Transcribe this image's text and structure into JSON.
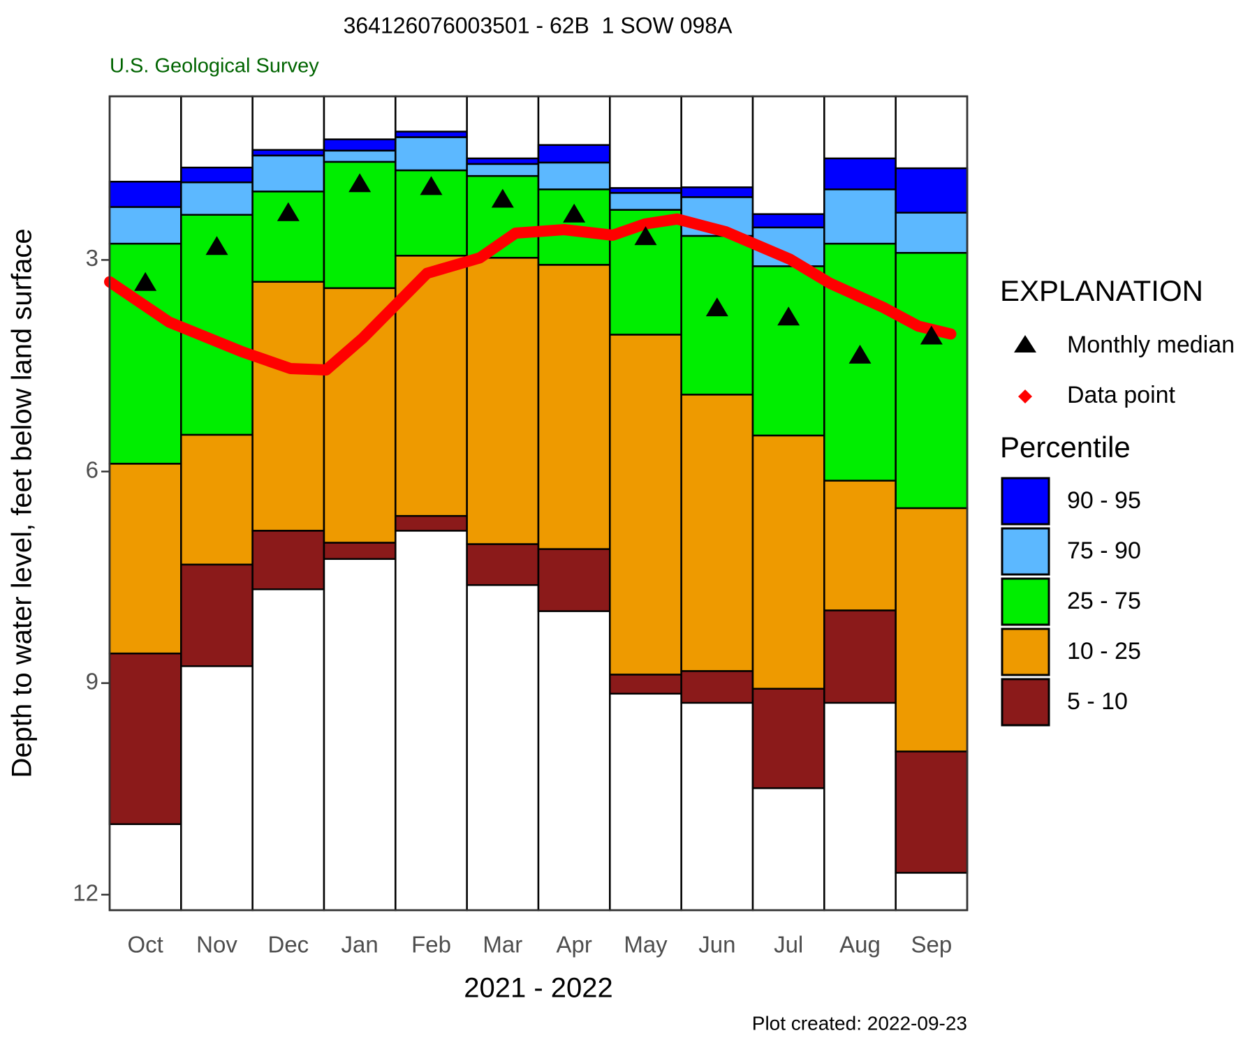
{
  "chart_data": {
    "type": "floating-bar",
    "title": "364126076003501 - 62B  1 SOW 098A",
    "subtitle": "U.S. Geological Survey",
    "caption": "Plot created: 2022-09-23",
    "x_label": "2021 - 2022",
    "y_label": "Depth to water level, feet below land surface",
    "categories": [
      "Oct",
      "Nov",
      "Dec",
      "Jan",
      "Feb",
      "Mar",
      "Apr",
      "May",
      "Jun",
      "Jul",
      "Aug",
      "Sep"
    ],
    "invert_y": true,
    "ylim": [
      0.68,
      12.22
    ],
    "yticks": [
      3,
      6,
      9,
      12
    ],
    "xlim": [
      0,
      12
    ],
    "legend_title": "EXPLANATION",
    "legend_subtitle": "Percentile",
    "series": [
      {
        "name": "90 - 95",
        "color": "#0000ff",
        "top": [
          1.89,
          1.69,
          1.44,
          1.29,
          1.18,
          1.56,
          1.37,
          1.98,
          1.97,
          2.35,
          1.56,
          1.7
        ],
        "bottom": [
          2.25,
          1.9,
          1.52,
          1.45,
          1.26,
          1.64,
          1.62,
          2.05,
          2.11,
          2.54,
          2.0,
          2.33
        ]
      },
      {
        "name": "75 - 90",
        "color": "#5cb8ff",
        "top": [
          2.25,
          1.9,
          1.52,
          1.45,
          1.26,
          1.64,
          1.62,
          2.05,
          2.11,
          2.54,
          2.0,
          2.33
        ],
        "bottom": [
          2.77,
          2.36,
          2.03,
          1.61,
          1.73,
          1.81,
          2.0,
          2.29,
          2.66,
          3.09,
          2.77,
          2.9
        ]
      },
      {
        "name": "25 - 75",
        "color": "#00ee00",
        "top": [
          2.77,
          2.36,
          2.03,
          1.61,
          1.73,
          1.81,
          2.0,
          2.29,
          2.66,
          3.09,
          2.77,
          2.9
        ],
        "bottom": [
          5.89,
          5.48,
          3.31,
          3.4,
          2.94,
          2.97,
          3.07,
          4.06,
          4.91,
          5.49,
          6.13,
          6.52
        ]
      },
      {
        "name": "10 - 25",
        "color": "#ee9a00",
        "top": [
          5.89,
          5.48,
          3.31,
          3.4,
          2.94,
          2.97,
          3.07,
          4.06,
          4.91,
          5.49,
          6.13,
          6.52
        ],
        "bottom": [
          8.58,
          7.32,
          6.84,
          7.01,
          6.63,
          7.03,
          7.1,
          8.88,
          8.83,
          9.08,
          7.97,
          9.97
        ]
      },
      {
        "name": "5 - 10",
        "color": "#8b1a1a",
        "top": [
          8.58,
          7.32,
          6.84,
          7.01,
          6.63,
          7.03,
          7.1,
          8.88,
          8.83,
          9.08,
          7.97,
          9.97
        ],
        "bottom": [
          11.0,
          8.76,
          7.67,
          7.24,
          6.84,
          7.61,
          7.98,
          9.15,
          9.28,
          10.49,
          9.28,
          11.69
        ]
      }
    ],
    "median": {
      "name": "Monthly median",
      "color": "#000000",
      "values": [
        3.32,
        2.81,
        2.33,
        1.92,
        1.96,
        2.14,
        2.35,
        2.67,
        3.68,
        3.81,
        4.35,
        4.08
      ]
    },
    "line": {
      "name": "Data point",
      "color": "#ff0000",
      "x": [
        0,
        0.83,
        1.85,
        2.53,
        3.03,
        3.54,
        4.44,
        5.18,
        5.68,
        6.36,
        7.04,
        7.49,
        7.94,
        8.62,
        9.52,
        10.08,
        10.82,
        11.32,
        11.77
      ],
      "values": [
        3.31,
        3.88,
        4.3,
        4.54,
        4.56,
        4.11,
        3.19,
        2.97,
        2.62,
        2.57,
        2.65,
        2.49,
        2.42,
        2.6,
        2.99,
        3.33,
        3.67,
        3.94,
        4.05
      ]
    }
  }
}
